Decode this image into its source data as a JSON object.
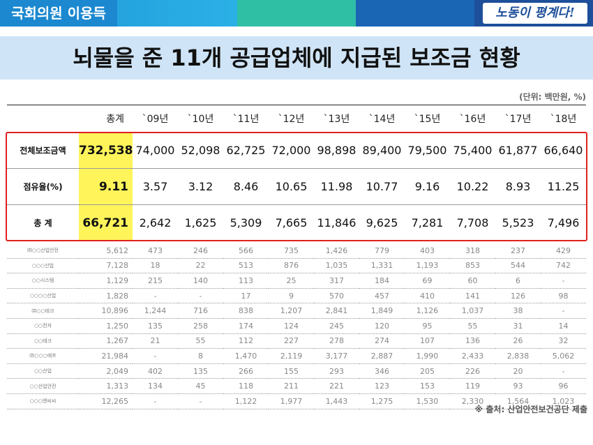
{
  "header": {
    "mp_name": "국회의원 이용득",
    "slogan": "노동이 평계다!",
    "colors": {
      "cyan": "#1e97d6",
      "teal": "#2ebfa5",
      "blue": "#1a65b4",
      "navy": "#1d4f9a"
    }
  },
  "title": "뇌물을 준 11개 공급업체에 지급된 보조금 현황",
  "unit": "(단위: 백만원, %)",
  "columns": [
    "총계",
    "`09년",
    "`10년",
    "`11년",
    "`12년",
    "`13년",
    "`14년",
    "`15년",
    "`16년",
    "`17년",
    "`18년"
  ],
  "summary_rows": [
    {
      "label": "전체보조금액",
      "total": "732,538",
      "values": [
        "74,000",
        "52,098",
        "62,725",
        "72,000",
        "98,898",
        "89,400",
        "79,500",
        "75,400",
        "61,877",
        "66,640"
      ]
    },
    {
      "label": "점유율(%)",
      "total": "9.11",
      "values": [
        "3.57",
        "3.12",
        "8.46",
        "10.65",
        "11.98",
        "10.77",
        "9.16",
        "10.22",
        "8.93",
        "11.25"
      ]
    },
    {
      "label": "총 계",
      "total": "66,721",
      "values": [
        "2,642",
        "1,625",
        "5,309",
        "7,665",
        "11,846",
        "9,625",
        "7,281",
        "7,708",
        "5,523",
        "7,496"
      ]
    }
  ],
  "detail_rows": [
    {
      "label": "㈜○○산업안전",
      "total": "5,612",
      "values": [
        "473",
        "246",
        "566",
        "735",
        "1,426",
        "779",
        "403",
        "318",
        "237",
        "429"
      ]
    },
    {
      "label": "○○○산업",
      "total": "7,128",
      "values": [
        "18",
        "22",
        "513",
        "876",
        "1,035",
        "1,331",
        "1,193",
        "853",
        "544",
        "742"
      ]
    },
    {
      "label": "○○시스템",
      "total": "1,129",
      "values": [
        "215",
        "140",
        "113",
        "25",
        "317",
        "184",
        "69",
        "60",
        "6",
        "-"
      ]
    },
    {
      "label": "○○○○산업",
      "total": "1,828",
      "values": [
        "-",
        "-",
        "17",
        "9",
        "570",
        "457",
        "410",
        "141",
        "126",
        "98"
      ]
    },
    {
      "label": "㈜○○테크",
      "total": "10,896",
      "values": [
        "1,244",
        "716",
        "838",
        "1,207",
        "2,841",
        "1,849",
        "1,126",
        "1,037",
        "38",
        "-"
      ]
    },
    {
      "label": "○○전자",
      "total": "1,250",
      "values": [
        "135",
        "258",
        "174",
        "124",
        "245",
        "120",
        "95",
        "55",
        "31",
        "14"
      ]
    },
    {
      "label": "○○테크",
      "total": "1,267",
      "values": [
        "21",
        "55",
        "112",
        "227",
        "278",
        "274",
        "107",
        "136",
        "26",
        "32"
      ]
    },
    {
      "label": "㈜○○○에프",
      "total": "21,984",
      "values": [
        "-",
        "8",
        "1,470",
        "2,119",
        "3,177",
        "2,887",
        "1,990",
        "2,433",
        "2,838",
        "5,062"
      ]
    },
    {
      "label": "○○산업",
      "total": "2,049",
      "values": [
        "402",
        "135",
        "266",
        "155",
        "293",
        "346",
        "205",
        "226",
        "20",
        "-"
      ]
    },
    {
      "label": "○○산업안전",
      "total": "1,313",
      "values": [
        "134",
        "45",
        "118",
        "211",
        "221",
        "123",
        "153",
        "119",
        "93",
        "96"
      ]
    },
    {
      "label": "○○○엔씨씨",
      "total": "12,265",
      "values": [
        "-",
        "-",
        "1,122",
        "1,977",
        "1,443",
        "1,275",
        "1,530",
        "2,330",
        "1,564",
        "1,023"
      ]
    }
  ],
  "source": "※ 출처: 산업안전보건공단 제출"
}
